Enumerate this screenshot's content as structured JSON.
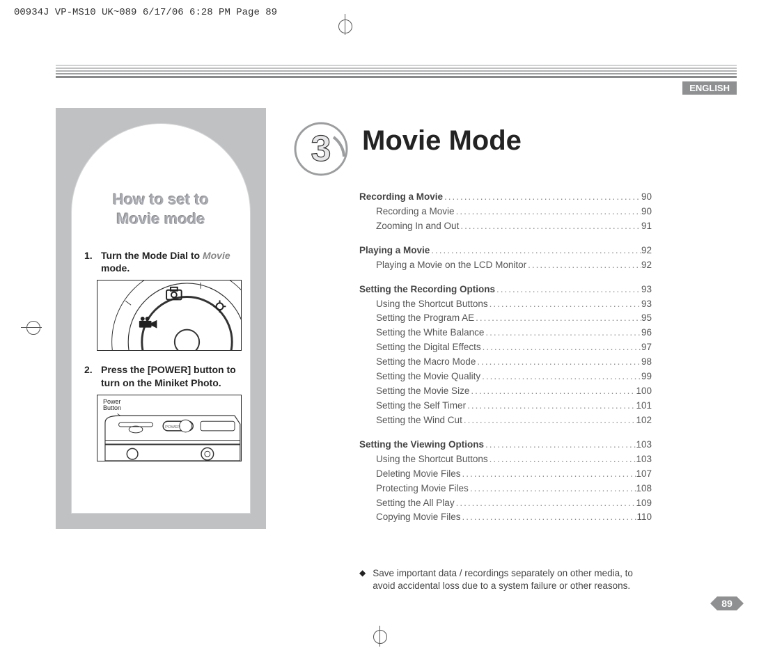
{
  "print_header": "00934J VP-MS10 UK~089  6/17/06 6:28 PM  Page 89",
  "language_badge": "ENGLISH",
  "chapter_number": "3",
  "chapter_title": "Movie Mode",
  "page_number": "89",
  "sidebar": {
    "title_line1": "How to set to",
    "title_line2": "Movie mode",
    "step1_num": "1.",
    "step1_text_a": "Turn the Mode Dial to ",
    "step1_text_italic": "Movie",
    "step1_text_b": " mode.",
    "step2_num": "2.",
    "step2_text": "Press the [POWER] button to turn on the Miniket Photo.",
    "power_label_a": "Power",
    "power_label_b": "Button"
  },
  "toc": [
    {
      "section": true,
      "bold": true,
      "label": "Recording a Movie",
      "page": "90"
    },
    {
      "sub": true,
      "label": "Recording a Movie",
      "page": "90"
    },
    {
      "sub": true,
      "label": "Zooming In and Out",
      "page": "91"
    },
    {
      "section": true,
      "bold": true,
      "label": "Playing a Movie",
      "page": "92"
    },
    {
      "sub": true,
      "label": "Playing a Movie on the LCD Monitor",
      "page": "92"
    },
    {
      "section": true,
      "bold": true,
      "label": "Setting the Recording Options",
      "page": "93"
    },
    {
      "sub": true,
      "label": "Using the Shortcut Buttons",
      "page": "93"
    },
    {
      "sub": true,
      "label": "Setting the Program AE",
      "page": "95"
    },
    {
      "sub": true,
      "label": "Setting the White Balance",
      "page": "96"
    },
    {
      "sub": true,
      "label": "Setting the Digital Effects",
      "page": "97"
    },
    {
      "sub": true,
      "label": "Setting the Macro Mode",
      "page": "98"
    },
    {
      "sub": true,
      "label": "Setting the Movie Quality",
      "page": "99"
    },
    {
      "sub": true,
      "label": "Setting the Movie Size",
      "page": "100"
    },
    {
      "sub": true,
      "label": "Setting the Self Timer",
      "page": "101"
    },
    {
      "sub": true,
      "label": "Setting the Wind Cut",
      "page": "102"
    },
    {
      "section": true,
      "bold": true,
      "label": "Setting the Viewing Options",
      "page": "103"
    },
    {
      "sub": true,
      "label": "Using the Shortcut Buttons",
      "page": "103"
    },
    {
      "sub": true,
      "label": "Deleting Movie Files",
      "page": "107"
    },
    {
      "sub": true,
      "label": "Protecting Movie Files",
      "page": "108"
    },
    {
      "sub": true,
      "label": "Setting the All Play",
      "page": "109"
    },
    {
      "sub": true,
      "label": "Copying Movie Files",
      "page": "110"
    }
  ],
  "note_bullet": "◆",
  "note_text": "Save important data / recordings separately on other media, to avoid accidental loss due to a system failure or other reasons.",
  "colors": {
    "sidebar_bg": "#c0c1c3",
    "arch_title": "#a9abb2",
    "badge_grey": "#8f9092",
    "rule_dark": "#88898b",
    "text_grey": "#555555",
    "page_badge": "#8f9092"
  }
}
